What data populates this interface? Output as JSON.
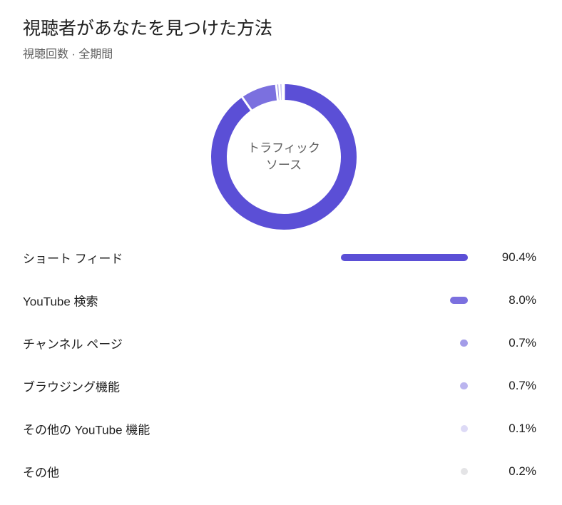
{
  "chart_data": {
    "type": "donut",
    "title": "視聴者があなたを見つけた方法",
    "subtitle": "視聴回数 · 全期間",
    "center_label": "トラフィック ソース",
    "categories": [
      "ショート フィード",
      "YouTube 検索",
      "チャンネル ページ",
      "ブラウジング機能",
      "その他の YouTube 機能",
      "その他"
    ],
    "values": [
      90.4,
      8.0,
      0.7,
      0.7,
      0.1,
      0.2
    ],
    "value_labels": [
      "90.4%",
      "8.0%",
      "0.7%",
      "0.7%",
      "0.1%",
      "0.2%"
    ],
    "colors": [
      "#5b4fd6",
      "#7b70df",
      "#a39ce8",
      "#bbb5ef",
      "#dddaf6",
      "#e4e4e6"
    ]
  }
}
